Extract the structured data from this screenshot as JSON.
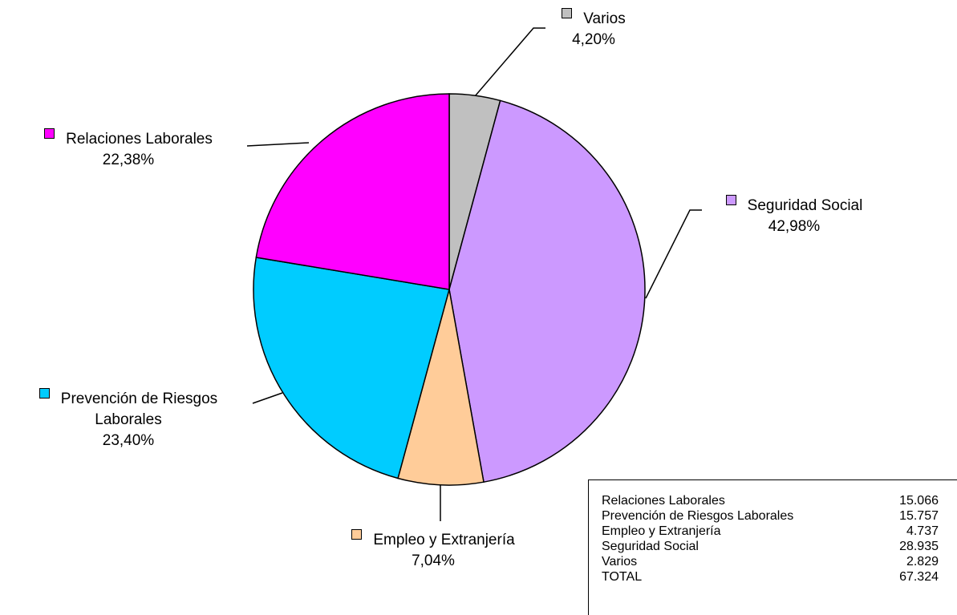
{
  "chart_data": {
    "type": "pie",
    "categories": [
      "Varios",
      "Seguridad Social",
      "Empleo y Extranjería",
      "Prevención de Riesgos Laborales",
      "Relaciones Laborales"
    ],
    "values": [
      4.2,
      42.98,
      7.04,
      23.4,
      22.38
    ],
    "value_labels": [
      "4,20%",
      "42,98%",
      "7,04%",
      "23,40%",
      "22,38%"
    ],
    "colors": [
      "#c0c0c0",
      "#cc99ff",
      "#ffcc99",
      "#00ccff",
      "#ff00ff"
    ]
  },
  "table": {
    "rows": [
      [
        "Relaciones Laborales",
        "15.066"
      ],
      [
        "Prevención de Riesgos Laborales",
        "15.757"
      ],
      [
        "Empleo y Extranjería",
        "4.737"
      ],
      [
        "Seguridad Social",
        "28.935"
      ],
      [
        "Varios",
        "2.829"
      ],
      [
        "TOTAL",
        "67.324"
      ]
    ]
  }
}
